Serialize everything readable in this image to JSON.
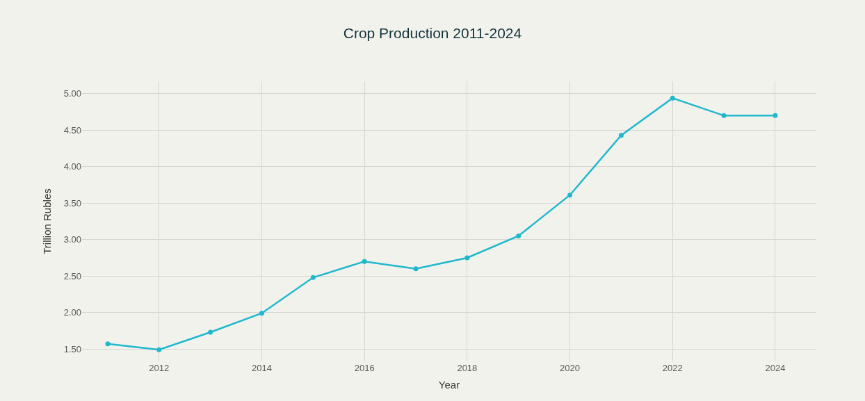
{
  "chart_data": {
    "type": "line",
    "title": "Crop Production 2011-2024",
    "xlabel": "Year",
    "ylabel": "Trillion Rubles",
    "x": [
      2011,
      2012,
      2013,
      2014,
      2015,
      2016,
      2017,
      2018,
      2019,
      2020,
      2021,
      2022,
      2023,
      2024
    ],
    "series": [
      {
        "color": "#1fb8cd",
        "values": [
          1.57,
          1.49,
          1.73,
          1.99,
          2.48,
          2.7,
          2.6,
          2.75,
          3.05,
          3.61,
          4.43,
          4.94,
          4.7,
          4.7
        ]
      }
    ],
    "xlim": [
      2010.5,
      2024.8
    ],
    "xticks": [
      2012,
      2014,
      2016,
      2018,
      2020,
      2022,
      2024
    ],
    "ylim": [
      1.33,
      5.17
    ],
    "yticks": [
      {
        "value": 1.5,
        "label": "1.50"
      },
      {
        "value": 2,
        "label": "2.00"
      },
      {
        "value": 2.5,
        "label": "2.50"
      },
      {
        "value": 3,
        "label": "3.00"
      },
      {
        "value": 3.5,
        "label": "3.50"
      },
      {
        "value": 4,
        "label": "4.00"
      },
      {
        "value": 4.5,
        "label": "4.50"
      },
      {
        "value": 5,
        "label": "5.00"
      }
    ],
    "grid": true,
    "marker": "circle",
    "line_style": "solid",
    "legend": false
  }
}
